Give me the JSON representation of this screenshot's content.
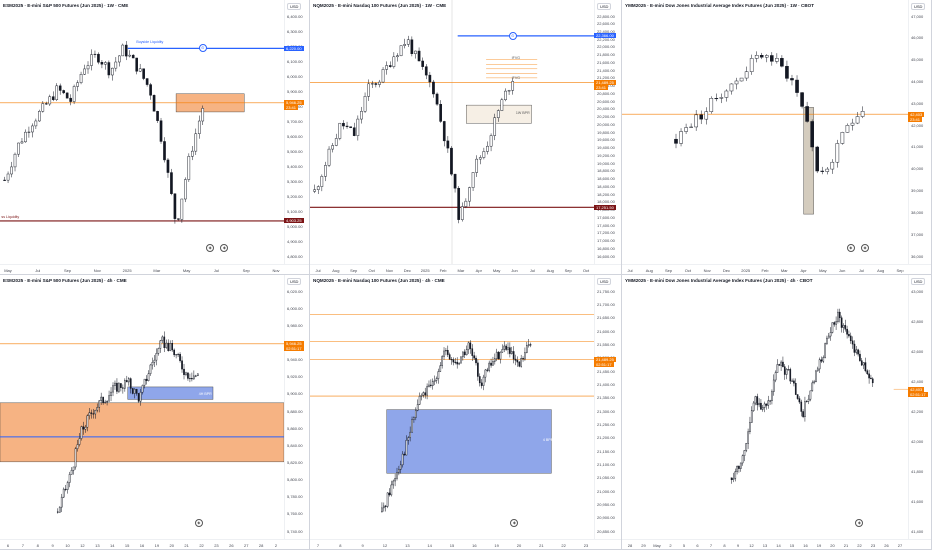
{
  "panels": [
    {
      "title": "ESM2025 · E-mini S&P 500 Futures (Jun 2025) · 1W · CME",
      "currency": "USD",
      "yticks": [
        "6,400.00",
        "6,300.00",
        "6,200.00",
        "6,100.00",
        "6,000.00",
        "5,900.00",
        "5,800.00",
        "5,700.00",
        "5,600.00",
        "5,500.00",
        "5,400.00",
        "5,300.00",
        "5,200.00",
        "5,100.00",
        "5,000.00",
        "4,900.00",
        "4,800.00"
      ],
      "xticks": [
        "May",
        "Jul",
        "Sep",
        "Nov",
        "2025",
        "Mar",
        "May",
        "Jul",
        "Sep",
        "Nov"
      ],
      "price_labels": [
        {
          "text": "6,220.00",
          "color": "#2962ff"
        },
        {
          "text": "5,946.25",
          "color": "#f57c00"
        },
        {
          "text": "23:41",
          "color": "#f57c00"
        },
        {
          "text": "4,903.25",
          "color": "#7b1416"
        }
      ],
      "annotations": [
        "Buyside Liquidity",
        "ss Liquidity"
      ]
    },
    {
      "title": "NQM2025 · E-mini Nasdaq 100 Futures (Jun 2025) · 1W · CME",
      "currency": "USD",
      "yticks": [
        "22,800.00",
        "22,600.00",
        "22,400.00",
        "22,200.00",
        "22,000.00",
        "21,800.00",
        "21,600.00",
        "21,400.00",
        "21,200.00",
        "21,000.00",
        "20,800.00",
        "20,600.00",
        "20,400.00",
        "20,200.00",
        "20,000.00",
        "19,800.00",
        "19,600.00",
        "19,400.00",
        "19,200.00",
        "19,000.00",
        "18,800.00",
        "18,600.00",
        "18,400.00",
        "18,200.00",
        "18,000.00",
        "17,800.00",
        "17,600.00",
        "17,400.00",
        "17,200.00",
        "17,000.00",
        "16,800.00",
        "16,600.00"
      ],
      "xticks": [
        "Jul",
        "Aug",
        "Sep",
        "Oct",
        "Nov",
        "Dec",
        "2025",
        "Feb",
        "Mar",
        "Apr",
        "May",
        "Jun",
        "Jul",
        "Aug",
        "Sep",
        "Oct"
      ],
      "price_labels": [
        {
          "text": "22,366.00",
          "color": "#2962ff"
        },
        {
          "text": "21,489.25",
          "color": "#f57c00"
        },
        {
          "text": "23:41",
          "color": "#f57c00"
        },
        {
          "text": "17,251.50",
          "color": "#7b1416"
        }
      ],
      "annotations": [
        "IFVG",
        "IFVG",
        "1W BPR"
      ]
    },
    {
      "title": "YMM2025 · E-mini Dow Jones Industrial Average Index Futures (Jun 2025) · 1W · CBOT",
      "currency": "USD",
      "yticks": [
        "47,000",
        "46,000",
        "45,000",
        "44,000",
        "43,000",
        "42,000",
        "41,000",
        "40,000",
        "39,000",
        "38,000",
        "37,000",
        "36,000"
      ],
      "xticks": [
        "Jul",
        "Aug",
        "Sep",
        "Oct",
        "Nov",
        "Dec",
        "2025",
        "Feb",
        "Mar",
        "Apr",
        "May",
        "Jun",
        "Jul",
        "Aug",
        "Sep"
      ],
      "price_labels": [
        {
          "text": "42,403",
          "color": "#f57c00"
        },
        {
          "text": "23:41",
          "color": "#f57c00"
        }
      ],
      "annotations": []
    },
    {
      "title": "ESM2025 · E-mini S&P 500 Futures (Jun 2025) · 4h · CME",
      "currency": "USD",
      "yticks": [
        "6,020.00",
        "6,000.00",
        "5,980.00",
        "5,960.00",
        "5,940.00",
        "5,920.00",
        "5,900.00",
        "5,880.00",
        "5,860.00",
        "5,840.00",
        "5,820.00",
        "5,800.00",
        "5,780.00",
        "5,760.00",
        "5,740.00"
      ],
      "xticks": [
        "6",
        "7",
        "8",
        "9",
        "10",
        "12",
        "13",
        "14",
        "15",
        "16",
        "19",
        "20",
        "21",
        "22",
        "23",
        "26",
        "27",
        "28",
        "2"
      ],
      "price_labels": [
        {
          "text": "5,946.25",
          "color": "#f57c00"
        },
        {
          "text": "02:51:17",
          "color": "#f57c00"
        }
      ],
      "annotations": [
        "4H BPR"
      ]
    },
    {
      "title": "NQM2025 · E-mini Nasdaq 100 Futures (Jun 2025) · 4h · CME",
      "currency": "USD",
      "yticks": [
        "21,750.00",
        "21,700.00",
        "21,650.00",
        "21,600.00",
        "21,550.00",
        "21,500.00",
        "21,450.00",
        "21,400.00",
        "21,350.00",
        "21,300.00",
        "21,250.00",
        "21,200.00",
        "21,150.00",
        "21,100.00",
        "21,050.00",
        "21,000.00",
        "20,950.00",
        "20,900.00",
        "20,850.00"
      ],
      "xticks": [
        "7",
        "8",
        "9",
        "12",
        "13",
        "14",
        "15",
        "16",
        "19",
        "20",
        "21",
        "22",
        "23"
      ],
      "price_labels": [
        {
          "text": "21,489.25",
          "color": "#f57c00"
        },
        {
          "text": "02:51:17",
          "color": "#f57c00"
        }
      ],
      "annotations": [
        "4 BPR"
      ]
    },
    {
      "title": "YMM2025 · E-mini Dow Jones Industrial Average Index Futures (Jun 2025) · 4h · CBOT",
      "currency": "USD",
      "yticks": [
        "43,000",
        "42,800",
        "42,600",
        "42,400",
        "42,200",
        "42,000",
        "41,800",
        "41,600",
        "41,400"
      ],
      "xticks": [
        "28",
        "29",
        "May",
        "2",
        "5",
        "6",
        "7",
        "8",
        "9",
        "12",
        "13",
        "14",
        "15",
        "16",
        "19",
        "20",
        "21",
        "22",
        "23",
        "26",
        "27"
      ],
      "price_labels": [
        {
          "text": "42,403",
          "color": "#f57c00"
        },
        {
          "text": "02:51:17",
          "color": "#f57c00"
        }
      ],
      "annotations": []
    }
  ],
  "colors": {
    "up": "#ffffff",
    "down": "#131722",
    "orange": "#f57c00",
    "blue": "#2962ff",
    "maroon": "#7b1416",
    "zone_orange": "#f4a66d",
    "zone_blue": "#7b97e6"
  }
}
